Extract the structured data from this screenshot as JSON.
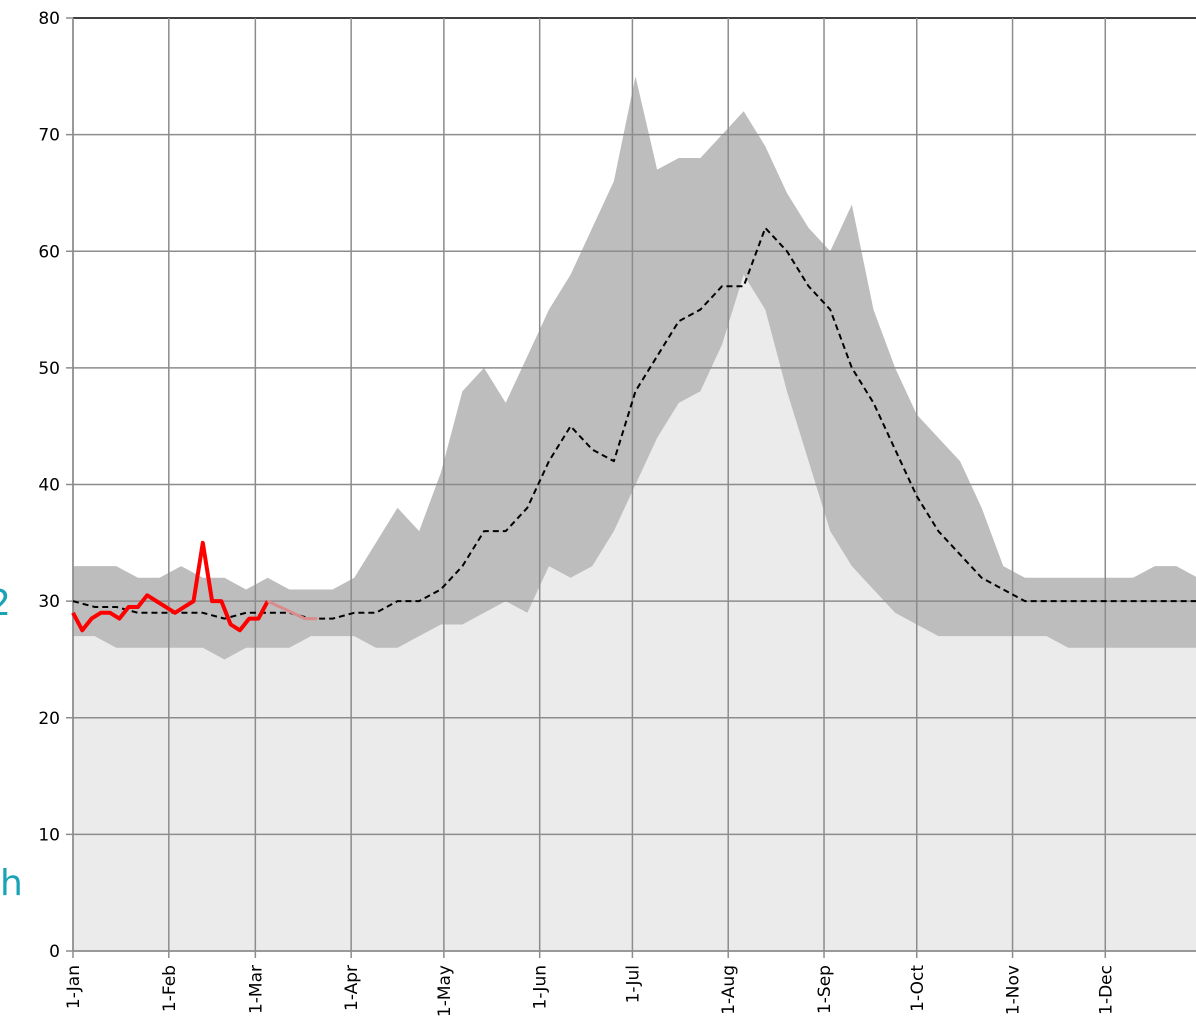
{
  "chart_data": {
    "type": "line",
    "annotations": [
      "2",
      "h"
    ],
    "xlim": [
      0,
      364
    ],
    "xticks": [
      {
        "value": 0,
        "label": "1-Jan"
      },
      {
        "value": 31,
        "label": "1-Feb"
      },
      {
        "value": 59,
        "label": "1-Mar"
      },
      {
        "value": 90,
        "label": "1-Apr"
      },
      {
        "value": 120,
        "label": "1-May"
      },
      {
        "value": 151,
        "label": "1-Jun"
      },
      {
        "value": 181,
        "label": "1-Jul"
      },
      {
        "value": 212,
        "label": "1-Aug"
      },
      {
        "value": 243,
        "label": "1-Sep"
      },
      {
        "value": 273,
        "label": "1-Oct"
      },
      {
        "value": 304,
        "label": "1-Nov"
      },
      {
        "value": 334,
        "label": "1-Dec"
      }
    ],
    "ylim": [
      0,
      80
    ],
    "yticks": [
      0,
      10,
      20,
      30,
      40,
      50,
      60,
      70,
      80
    ],
    "grid": true,
    "series": [
      {
        "style": "area",
        "color": "#bdbdbd",
        "x": [
          0,
          7,
          14,
          21,
          28,
          35,
          42,
          49,
          56,
          63,
          70,
          77,
          84,
          91,
          98,
          105,
          112,
          119,
          126,
          133,
          140,
          147,
          154,
          161,
          168,
          175,
          182,
          189,
          196,
          203,
          210,
          217,
          224,
          231,
          238,
          245,
          252,
          259,
          266,
          273,
          280,
          287,
          294,
          301,
          308,
          315,
          322,
          329,
          336,
          343,
          350,
          357,
          364
        ],
        "values": [
          33,
          33,
          33,
          32,
          32,
          33,
          32,
          32,
          31,
          32,
          31,
          31,
          31,
          32,
          35,
          38,
          36,
          41,
          48,
          50,
          47,
          51,
          55,
          58,
          62,
          66,
          75,
          67,
          68,
          68,
          70,
          72,
          69,
          65,
          62,
          60,
          64,
          55,
          50,
          46,
          44,
          42,
          38,
          33,
          32,
          32,
          32,
          32,
          32,
          32,
          33,
          33,
          32
        ]
      },
      {
        "style": "area",
        "color": "#ebebeb",
        "x": [
          0,
          7,
          14,
          21,
          28,
          35,
          42,
          49,
          56,
          63,
          70,
          77,
          84,
          91,
          98,
          105,
          112,
          119,
          126,
          133,
          140,
          147,
          154,
          161,
          168,
          175,
          182,
          189,
          196,
          203,
          210,
          217,
          224,
          231,
          238,
          245,
          252,
          259,
          266,
          273,
          280,
          287,
          294,
          301,
          308,
          315,
          322,
          329,
          336,
          343,
          350,
          357,
          364
        ],
        "values": [
          27,
          27,
          26,
          26,
          26,
          26,
          26,
          25,
          26,
          26,
          26,
          27,
          27,
          27,
          26,
          26,
          27,
          28,
          28,
          29,
          30,
          29,
          33,
          32,
          33,
          36,
          40,
          44,
          47,
          48,
          52,
          58,
          55,
          48,
          42,
          36,
          33,
          31,
          29,
          28,
          27,
          27,
          27,
          27,
          27,
          27,
          26,
          26,
          26,
          26,
          26,
          26,
          26
        ]
      },
      {
        "style": "dashed",
        "color": "#000000",
        "x": [
          0,
          7,
          14,
          21,
          28,
          35,
          42,
          49,
          56,
          63,
          70,
          77,
          84,
          91,
          98,
          105,
          112,
          119,
          126,
          133,
          140,
          147,
          154,
          161,
          168,
          175,
          182,
          189,
          196,
          203,
          210,
          217,
          224,
          231,
          238,
          245,
          252,
          259,
          266,
          273,
          280,
          287,
          294,
          301,
          308,
          315,
          322,
          329,
          336,
          343,
          350,
          357,
          364
        ],
        "values": [
          30,
          29.5,
          29.5,
          29,
          29,
          29,
          29,
          28.5,
          29,
          29,
          29,
          28.5,
          28.5,
          29,
          29,
          30,
          30,
          31,
          33,
          36,
          36,
          38,
          42,
          45,
          43,
          42,
          48,
          51,
          54,
          55,
          57,
          57,
          62,
          60,
          57,
          55,
          50,
          47,
          43,
          39,
          36,
          34,
          32,
          31,
          30,
          30,
          30,
          30,
          30,
          30,
          30,
          30,
          30
        ]
      },
      {
        "style": "solid",
        "color": "#ff0000",
        "x": [
          0,
          3,
          6,
          9,
          12,
          15,
          18,
          21,
          24,
          27,
          30,
          33,
          36,
          39,
          42,
          45,
          48,
          51,
          54,
          57,
          60,
          63
        ],
        "values": [
          29,
          27.5,
          28.5,
          29,
          29,
          28.5,
          29.5,
          29.5,
          30.5,
          30,
          29.5,
          29,
          29.5,
          30,
          35,
          30,
          30,
          28,
          27.5,
          28.5,
          28.5,
          30
        ]
      },
      {
        "style": "thin",
        "color": "#d98c8c",
        "x": [
          63,
          67,
          71,
          75,
          79
        ],
        "values": [
          30,
          29.5,
          29,
          28.5,
          28.5
        ]
      }
    ]
  }
}
